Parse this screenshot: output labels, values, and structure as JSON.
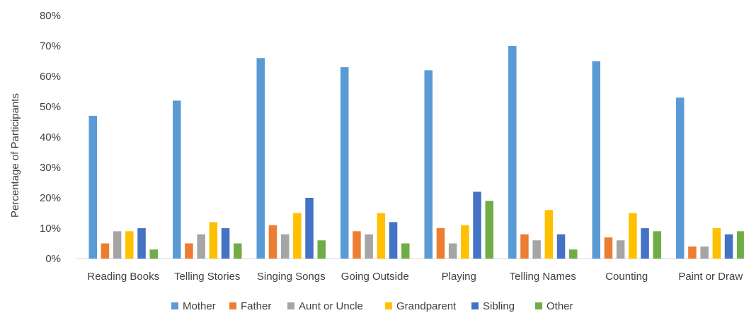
{
  "chart_data": {
    "type": "bar",
    "ylabel": "Percentage of Participants",
    "ylim": [
      0,
      80
    ],
    "yticks": [
      "0%",
      "10%",
      "20%",
      "30%",
      "40%",
      "50%",
      "60%",
      "70%",
      "80%"
    ],
    "categories": [
      "Reading Books",
      "Telling Stories",
      "Singing Songs",
      "Going Outside",
      "Playing",
      "Telling Names",
      "Counting",
      "Paint or Draw"
    ],
    "series": [
      {
        "name": "Mother",
        "color": "#5b9bd5",
        "values": [
          47,
          52,
          66,
          63,
          62,
          70,
          65,
          53
        ]
      },
      {
        "name": "Father",
        "color": "#ed7d31",
        "values": [
          5,
          5,
          11,
          9,
          10,
          8,
          7,
          4
        ]
      },
      {
        "name": "Aunt or Uncle",
        "color": "#a5a5a5",
        "values": [
          9,
          8,
          8,
          8,
          5,
          6,
          6,
          4
        ]
      },
      {
        "name": "Grandparent",
        "color": "#ffc000",
        "values": [
          9,
          12,
          15,
          15,
          11,
          16,
          15,
          10
        ]
      },
      {
        "name": "Sibling",
        "color": "#4472c4",
        "values": [
          10,
          10,
          20,
          12,
          22,
          8,
          10,
          8
        ]
      },
      {
        "name": "Other",
        "color": "#70ad47",
        "values": [
          3,
          5,
          6,
          5,
          19,
          3,
          9,
          9
        ]
      }
    ],
    "grid": false,
    "legend": "bottom"
  }
}
